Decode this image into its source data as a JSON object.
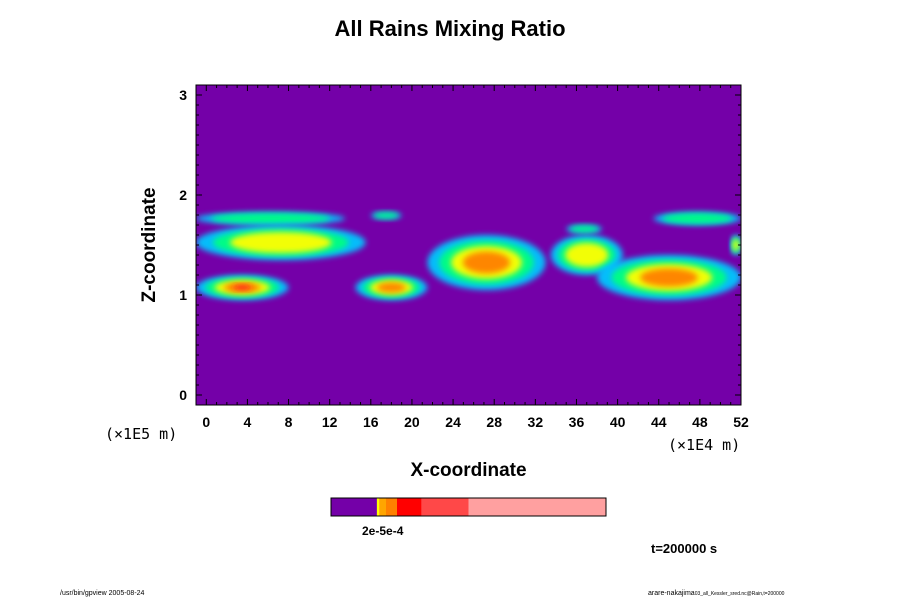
{
  "chart_data": {
    "type": "heatmap",
    "title": "All Rains Mixing Ratio",
    "xlabel": "X-coordinate",
    "ylabel": "Z-coordinate",
    "x_scale_note": "(×1E4 m)",
    "y_scale_note": "(×1E5 m)",
    "xlim": [
      -1,
      52
    ],
    "ylim": [
      -0.1,
      3.1
    ],
    "x_ticks": [
      "0",
      "4",
      "8",
      "12",
      "16",
      "20",
      "24",
      "28",
      "32",
      "36",
      "40",
      "44",
      "48",
      "52"
    ],
    "y_ticks": [
      "0",
      "1",
      "2",
      "3"
    ],
    "background_color": "#7400a8",
    "colorbar": {
      "label": "2e-5e-4",
      "colors": [
        "#7400a8",
        "#ffff00",
        "#ffa500",
        "#ff8000",
        "#ff0000",
        "#ff4848",
        "#ffa0a0"
      ]
    },
    "cloud_regions": [
      {
        "x": [
          -1,
          13.5
        ],
        "z": [
          1.7,
          1.83
        ],
        "intensity": 1
      },
      {
        "x": [
          -1,
          15.5
        ],
        "z": [
          1.35,
          1.7
        ],
        "intensity": 2
      },
      {
        "x": [
          -1,
          8
        ],
        "z": [
          0.95,
          1.2
        ],
        "intensity": 4
      },
      {
        "x": [
          14.5,
          21.5
        ],
        "z": [
          0.95,
          1.2
        ],
        "intensity": 3
      },
      {
        "x": [
          16,
          19
        ],
        "z": [
          1.76,
          1.83
        ],
        "intensity": 1
      },
      {
        "x": [
          21.5,
          33
        ],
        "z": [
          1.05,
          1.6
        ],
        "intensity": 3
      },
      {
        "x": [
          33.5,
          40.5
        ],
        "z": [
          1.2,
          1.6
        ],
        "intensity": 2
      },
      {
        "x": [
          35,
          38.5
        ],
        "z": [
          1.62,
          1.7
        ],
        "intensity": 1
      },
      {
        "x": [
          38,
          52
        ],
        "z": [
          0.95,
          1.4
        ],
        "intensity": 3
      },
      {
        "x": [
          43.5,
          52
        ],
        "z": [
          1.7,
          1.83
        ],
        "intensity": 1
      },
      {
        "x": [
          51,
          52
        ],
        "z": [
          1.4,
          1.6
        ],
        "intensity": 2
      }
    ],
    "grid": false
  },
  "annotations": {
    "time": "t=200000 s",
    "footer_left": "/usr/bin/gpview 2005-08-24",
    "footer_right_main": "arare-nakajima",
    "footer_right_small": "03_all_Kessler_sred.nc@Rain,t=200000"
  }
}
